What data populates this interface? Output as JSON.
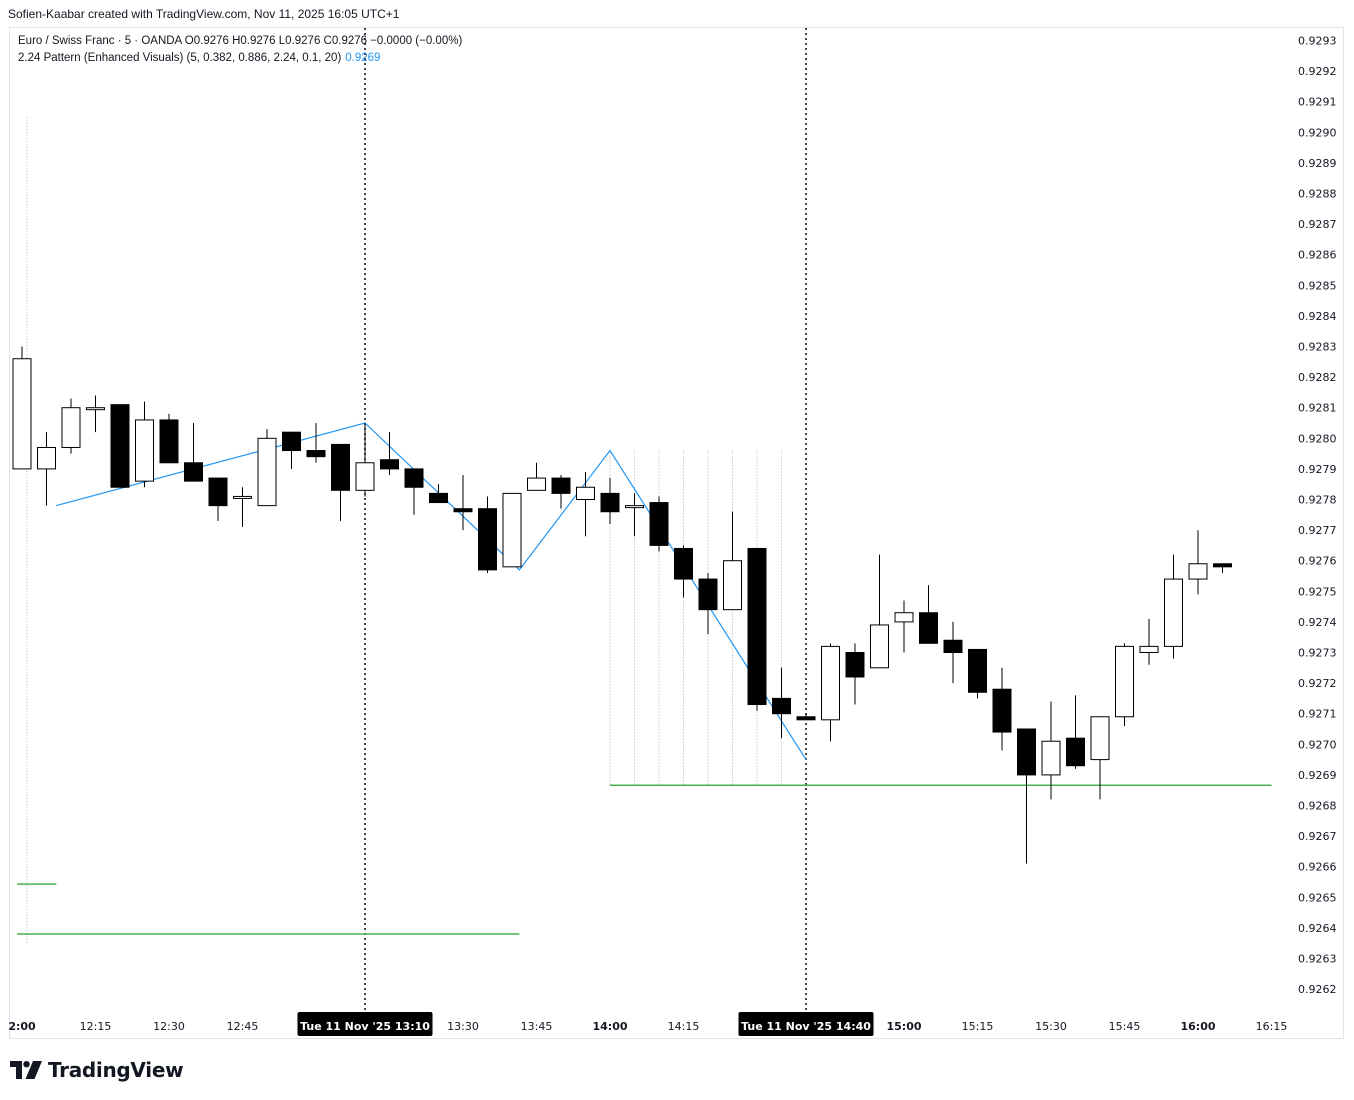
{
  "credit": "Sofien-Kaabar created with TradingView.com, Nov 11, 2025 16:05 UTC+1",
  "legend": {
    "symbol_line": "Euro / Swiss Franc · 5 · OANDA  O0.9276  H0.9276  L0.9276  C0.9276  −0.0000 (−0.00%)",
    "indicator_line": "2.24 Pattern (Enhanced Visuals) (5, 0.382, 0.886, 2.24, 0.1, 20)",
    "indicator_value": "0.9269"
  },
  "logo": {
    "icon": "tradingview-logo-icon",
    "text": "TradingView"
  },
  "colors": {
    "up_body": "#ffffff",
    "down_body": "#000000",
    "pattern_line": "#2196f3",
    "level_line": "#4caf50",
    "cursor_label_bg": "#000000"
  },
  "chart_data": {
    "type": "candlestick",
    "symbol": "Euro / Swiss Franc",
    "interval": "5",
    "ylim": [
      0.92615,
      0.92935
    ],
    "price_ticks": [
      "0.9293",
      "0.9292",
      "0.9291",
      "0.9290",
      "0.9289",
      "0.9288",
      "0.9287",
      "0.9286",
      "0.9285",
      "0.9284",
      "0.9283",
      "0.9282",
      "0.9281",
      "0.9280",
      "0.9279",
      "0.9278",
      "0.9277",
      "0.9276",
      "0.9275",
      "0.9274",
      "0.9273",
      "0.9272",
      "0.9271",
      "0.9270",
      "0.9269",
      "0.9268",
      "0.9267",
      "0.9266",
      "0.9265",
      "0.9264",
      "0.9263",
      "0.9262"
    ],
    "time_ticks": [
      {
        "bar": 0,
        "label": "2:00",
        "bold": true
      },
      {
        "bar": 3,
        "label": "12:15",
        "bold": false
      },
      {
        "bar": 6,
        "label": "12:30",
        "bold": false
      },
      {
        "bar": 9,
        "label": "12:45",
        "bold": false
      },
      {
        "bar": 18,
        "label": "13:30",
        "bold": false
      },
      {
        "bar": 21,
        "label": "13:45",
        "bold": false
      },
      {
        "bar": 24,
        "label": "14:00",
        "bold": true
      },
      {
        "bar": 27,
        "label": "14:15",
        "bold": false
      },
      {
        "bar": 36,
        "label": "15:00",
        "bold": true
      },
      {
        "bar": 39,
        "label": "15:15",
        "bold": false
      },
      {
        "bar": 42,
        "label": "15:30",
        "bold": false
      },
      {
        "bar": 45,
        "label": "15:45",
        "bold": false
      },
      {
        "bar": 48,
        "label": "16:00",
        "bold": true
      },
      {
        "bar": 51,
        "label": "16:15",
        "bold": false
      }
    ],
    "cursor_labels": [
      {
        "bar": 14,
        "label": "Tue 11 Nov '25   13:10"
      },
      {
        "bar": 32,
        "label": "Tue 11 Nov '25   14:40"
      }
    ],
    "candles": [
      {
        "o": 0.9279,
        "h": 0.9283,
        "l": 0.9279,
        "c": 0.92826
      },
      {
        "o": 0.9279,
        "h": 0.92802,
        "l": 0.92778,
        "c": 0.92797
      },
      {
        "o": 0.92797,
        "h": 0.92813,
        "l": 0.92795,
        "c": 0.9281
      },
      {
        "o": 0.9281,
        "h": 0.92814,
        "l": 0.92802,
        "c": 0.9281
      },
      {
        "o": 0.92811,
        "h": 0.92811,
        "l": 0.92784,
        "c": 0.92784
      },
      {
        "o": 0.92786,
        "h": 0.92812,
        "l": 0.92784,
        "c": 0.92806
      },
      {
        "o": 0.92806,
        "h": 0.92808,
        "l": 0.92792,
        "c": 0.92792
      },
      {
        "o": 0.92792,
        "h": 0.92805,
        "l": 0.92786,
        "c": 0.92786
      },
      {
        "o": 0.92787,
        "h": 0.92787,
        "l": 0.92773,
        "c": 0.92778
      },
      {
        "o": 0.92781,
        "h": 0.92784,
        "l": 0.92771,
        "c": 0.92781
      },
      {
        "o": 0.92778,
        "h": 0.92803,
        "l": 0.92778,
        "c": 0.928
      },
      {
        "o": 0.92802,
        "h": 0.92802,
        "l": 0.9279,
        "c": 0.92796
      },
      {
        "o": 0.92796,
        "h": 0.92805,
        "l": 0.92792,
        "c": 0.92794
      },
      {
        "o": 0.92798,
        "h": 0.92798,
        "l": 0.92773,
        "c": 0.92783
      },
      {
        "o": 0.92783,
        "h": 0.92805,
        "l": 0.92781,
        "c": 0.92792
      },
      {
        "o": 0.92793,
        "h": 0.92802,
        "l": 0.92788,
        "c": 0.9279
      },
      {
        "o": 0.9279,
        "h": 0.9279,
        "l": 0.92775,
        "c": 0.92784
      },
      {
        "o": 0.92782,
        "h": 0.92785,
        "l": 0.92779,
        "c": 0.92779
      },
      {
        "o": 0.92777,
        "h": 0.92788,
        "l": 0.9277,
        "c": 0.92776
      },
      {
        "o": 0.92777,
        "h": 0.92781,
        "l": 0.92756,
        "c": 0.92757
      },
      {
        "o": 0.92758,
        "h": 0.92782,
        "l": 0.92758,
        "c": 0.92782
      },
      {
        "o": 0.92783,
        "h": 0.92792,
        "l": 0.92783,
        "c": 0.92787
      },
      {
        "o": 0.92787,
        "h": 0.92788,
        "l": 0.92777,
        "c": 0.92782
      },
      {
        "o": 0.9278,
        "h": 0.92789,
        "l": 0.92768,
        "c": 0.92784
      },
      {
        "o": 0.92782,
        "h": 0.92787,
        "l": 0.92772,
        "c": 0.92776
      },
      {
        "o": 0.92778,
        "h": 0.92782,
        "l": 0.92768,
        "c": 0.92778
      },
      {
        "o": 0.92779,
        "h": 0.92781,
        "l": 0.92763,
        "c": 0.92765
      },
      {
        "o": 0.92764,
        "h": 0.92765,
        "l": 0.92748,
        "c": 0.92754
      },
      {
        "o": 0.92754,
        "h": 0.92756,
        "l": 0.92736,
        "c": 0.92744
      },
      {
        "o": 0.92744,
        "h": 0.92776,
        "l": 0.92744,
        "c": 0.9276
      },
      {
        "o": 0.92764,
        "h": 0.92764,
        "l": 0.92711,
        "c": 0.92713
      },
      {
        "o": 0.92715,
        "h": 0.92725,
        "l": 0.92702,
        "c": 0.9271
      },
      {
        "o": 0.92709,
        "h": 0.9271,
        "l": 0.92708,
        "c": 0.92708
      },
      {
        "o": 0.92708,
        "h": 0.92733,
        "l": 0.92701,
        "c": 0.92732
      },
      {
        "o": 0.9273,
        "h": 0.92733,
        "l": 0.92713,
        "c": 0.92722
      },
      {
        "o": 0.92725,
        "h": 0.92762,
        "l": 0.92725,
        "c": 0.92739
      },
      {
        "o": 0.9274,
        "h": 0.92747,
        "l": 0.9273,
        "c": 0.92743
      },
      {
        "o": 0.92743,
        "h": 0.92752,
        "l": 0.92733,
        "c": 0.92733
      },
      {
        "o": 0.92734,
        "h": 0.9274,
        "l": 0.9272,
        "c": 0.9273
      },
      {
        "o": 0.92731,
        "h": 0.92731,
        "l": 0.92715,
        "c": 0.92717
      },
      {
        "o": 0.92718,
        "h": 0.92725,
        "l": 0.92698,
        "c": 0.92704
      },
      {
        "o": 0.92705,
        "h": 0.92705,
        "l": 0.92661,
        "c": 0.9269
      },
      {
        "o": 0.9269,
        "h": 0.92714,
        "l": 0.92682,
        "c": 0.92701
      },
      {
        "o": 0.92702,
        "h": 0.92716,
        "l": 0.92692,
        "c": 0.92693
      },
      {
        "o": 0.92695,
        "h": 0.92708,
        "l": 0.92682,
        "c": 0.92709
      },
      {
        "o": 0.92709,
        "h": 0.92733,
        "l": 0.92706,
        "c": 0.92732
      },
      {
        "o": 0.9273,
        "h": 0.92741,
        "l": 0.92726,
        "c": 0.92732
      },
      {
        "o": 0.92732,
        "h": 0.92762,
        "l": 0.92728,
        "c": 0.92754
      },
      {
        "o": 0.92754,
        "h": 0.9277,
        "l": 0.92749,
        "c": 0.92759
      },
      {
        "o": 0.92759,
        "h": 0.92759,
        "l": 0.92756,
        "c": 0.92758
      }
    ],
    "pattern_zigzag": [
      {
        "bar": 1.4,
        "price": 0.92778
      },
      {
        "bar": 14.0,
        "price": 0.92805
      },
      {
        "bar": 20.3,
        "price": 0.92757
      },
      {
        "bar": 24.0,
        "price": 0.92796
      },
      {
        "bar": 32.0,
        "price": 0.92695
      }
    ],
    "levels": [
      {
        "from_bar": 24.0,
        "to_bar": 51.0,
        "price": 0.926866
      },
      {
        "from_bar": -0.2,
        "to_bar": 20.3,
        "price": 0.92638
      },
      {
        "from_bar": -0.2,
        "to_bar": 1.4,
        "price": 0.926543
      }
    ],
    "projection_guides": {
      "from_bar": 24,
      "to_bar": 31,
      "top_price": 0.92796,
      "bottom_price": 0.926866
    },
    "left_guide": {
      "bar": 0.2,
      "top_price": 0.92905,
      "bottom_price": 0.92635
    },
    "crosshair_bars": [
      14,
      32
    ]
  }
}
